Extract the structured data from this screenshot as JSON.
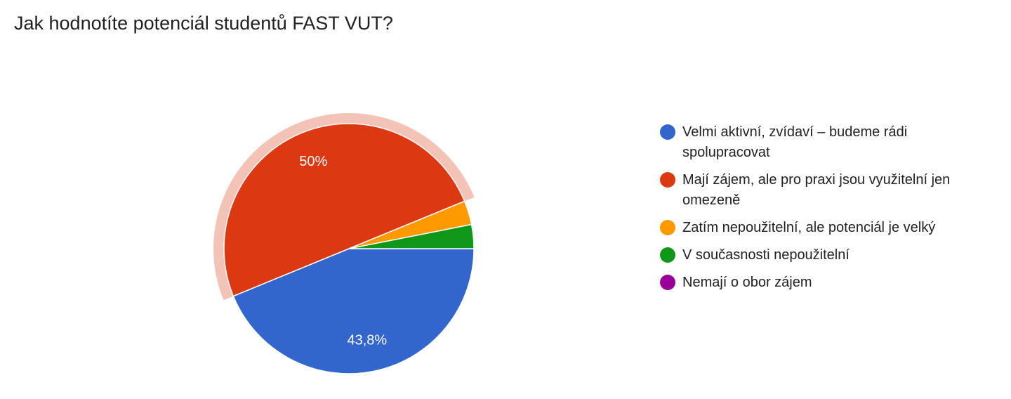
{
  "chart_data": {
    "type": "pie",
    "title": "Jak hodnotíte potenciál studentů FAST VUT?",
    "categories": [
      "Velmi aktivní, zvídaví – budeme rádi spolupracovat",
      "Mají zájem, ale pro praxi jsou využitelní jen omezeně",
      "Zatím nepoužitelní, ale potenciál je velký",
      "V současnosti nepoužitelní",
      "Nemají o obor zájem"
    ],
    "values": [
      43.8,
      50,
      3.1,
      3.1,
      0
    ],
    "value_labels": [
      "43,8%",
      "50%",
      null,
      null,
      null
    ],
    "colors": [
      "#3366cc",
      "#dc3912",
      "#ff9900",
      "#109618",
      "#990099"
    ],
    "highlighted": 1,
    "legend": "right"
  }
}
